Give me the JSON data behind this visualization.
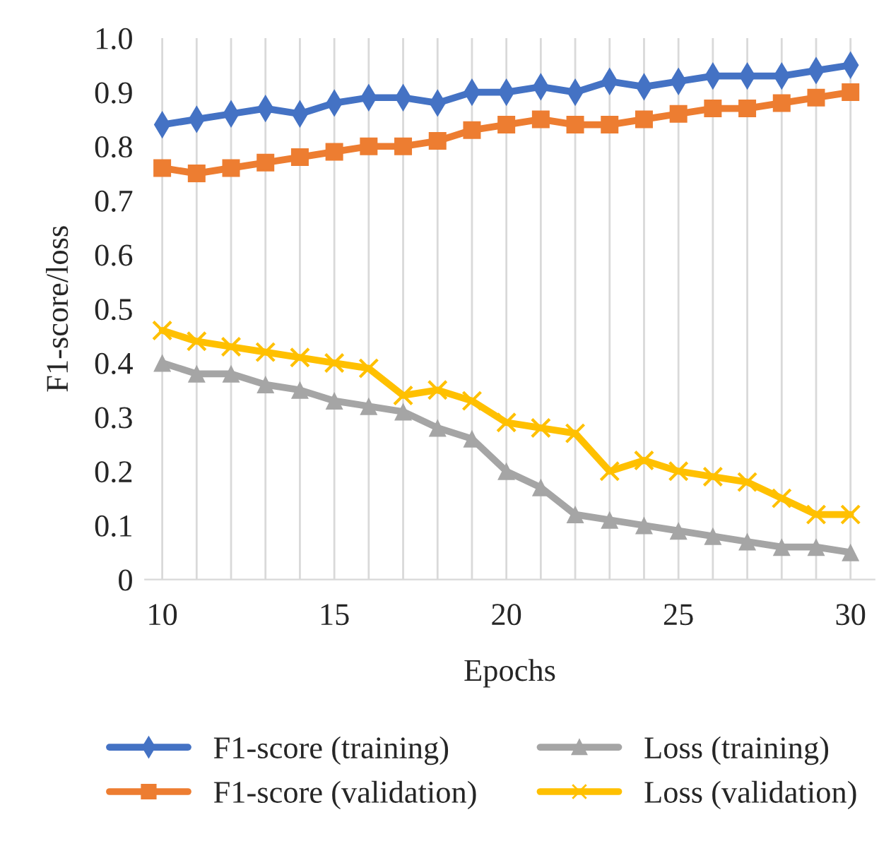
{
  "chart_data": {
    "type": "line",
    "xlabel": "Epochs",
    "ylabel": "F1-score/loss",
    "x": [
      10,
      11,
      12,
      13,
      14,
      15,
      16,
      17,
      18,
      19,
      20,
      21,
      22,
      23,
      24,
      25,
      26,
      27,
      28,
      29,
      30
    ],
    "xlim": [
      9.5,
      30.7
    ],
    "xticks": [
      10,
      {
        "value": 11,
        "label": null
      },
      {
        "value": 12,
        "label": null
      },
      {
        "value": 13,
        "label": null
      },
      {
        "value": 14,
        "label": null
      },
      15,
      {
        "value": 16,
        "label": null
      },
      {
        "value": 17,
        "label": null
      },
      {
        "value": 18,
        "label": null
      },
      {
        "value": 19,
        "label": null
      },
      20,
      {
        "value": 21,
        "label": null
      },
      {
        "value": 22,
        "label": null
      },
      {
        "value": 23,
        "label": null
      },
      {
        "value": 24,
        "label": null
      },
      25,
      {
        "value": 26,
        "label": null
      },
      {
        "value": 27,
        "label": null
      },
      {
        "value": 28,
        "label": null
      },
      {
        "value": 29,
        "label": null
      },
      30
    ],
    "ylim": [
      0,
      1.0
    ],
    "yticks": [
      0,
      0.1,
      0.2,
      0.3,
      0.4,
      0.5,
      0.6,
      0.7,
      0.8,
      0.9,
      {
        "value": 1.0,
        "label": "1.0"
      }
    ],
    "grid": "x",
    "legend": "bottom",
    "series": [
      {
        "name": "F1-score (training)",
        "color": "#4472c4",
        "marker": "diamond",
        "values": [
          0.84,
          0.85,
          0.86,
          0.87,
          0.86,
          0.88,
          0.89,
          0.89,
          0.88,
          0.9,
          0.9,
          0.91,
          0.9,
          0.92,
          0.91,
          0.92,
          0.93,
          0.93,
          0.93,
          0.94,
          0.95
        ]
      },
      {
        "name": "F1-score (validation)",
        "color": "#ed7d31",
        "marker": "square",
        "values": [
          0.76,
          0.75,
          0.76,
          0.77,
          0.78,
          0.79,
          0.8,
          0.8,
          0.81,
          0.83,
          0.84,
          0.85,
          0.84,
          0.84,
          0.85,
          0.86,
          0.87,
          0.87,
          0.88,
          0.89,
          0.9
        ]
      },
      {
        "name": "Loss (training)",
        "color": "#a5a5a5",
        "marker": "triangle",
        "values": [
          0.4,
          0.38,
          0.38,
          0.36,
          0.35,
          0.33,
          0.32,
          0.31,
          0.28,
          0.26,
          0.2,
          0.17,
          0.12,
          0.11,
          0.1,
          0.09,
          0.08,
          0.07,
          0.06,
          0.06,
          0.05
        ]
      },
      {
        "name": "Loss (validation)",
        "color": "#ffc000",
        "marker": "cross",
        "values": [
          0.46,
          0.44,
          0.43,
          0.42,
          0.41,
          0.4,
          0.39,
          0.34,
          0.35,
          0.33,
          0.29,
          0.28,
          0.27,
          0.2,
          0.22,
          0.2,
          0.19,
          0.18,
          0.15,
          0.12,
          0.12
        ]
      }
    ]
  }
}
